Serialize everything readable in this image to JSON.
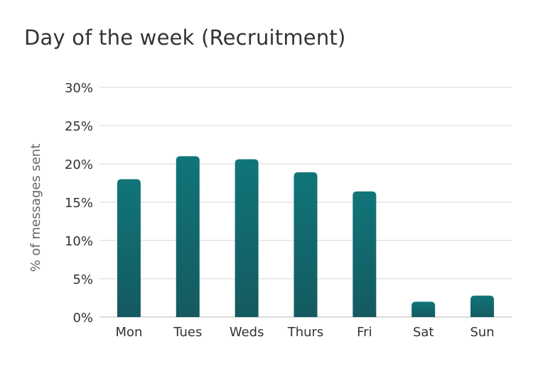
{
  "chart_data": {
    "type": "bar",
    "title": "Day of the week (Recruitment)",
    "ylabel": "% of messages sent",
    "xlabel": "",
    "categories": [
      "Mon",
      "Tues",
      "Weds",
      "Thurs",
      "Fri",
      "Sat",
      "Sun"
    ],
    "values": [
      18,
      21,
      20.6,
      18.9,
      16.4,
      2,
      2.8
    ],
    "ylim": [
      0,
      30
    ],
    "yticks": [
      "0%",
      "5%",
      "10%",
      "15%",
      "20%",
      "25%",
      "30%"
    ],
    "ytick_values": [
      0,
      5,
      10,
      15,
      20,
      25,
      30
    ],
    "grid": true,
    "bar_color_top": "#107579",
    "bar_color_bottom": "#145a60",
    "grid_color": "#e3e3e3"
  }
}
